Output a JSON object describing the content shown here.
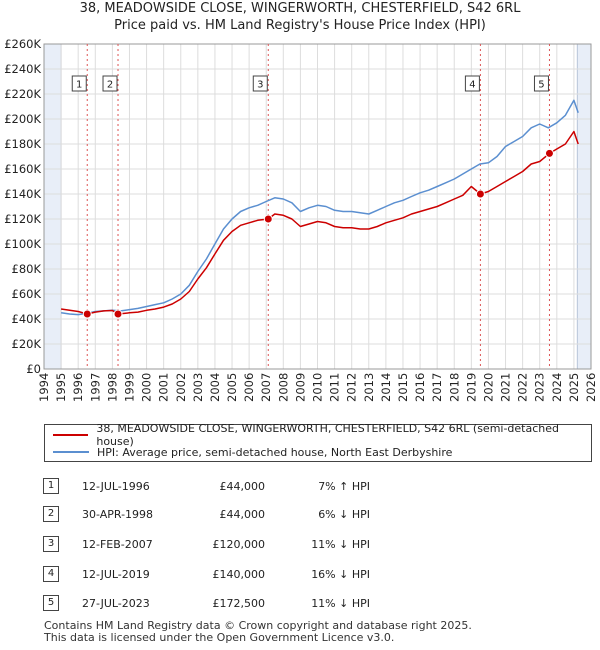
{
  "title_line1": "38, MEADOWSIDE CLOSE, WINGERWORTH, CHESTERFIELD, S42 6RL",
  "title_line2": "Price paid vs. HM Land Registry's House Price Index (HPI)",
  "legend": {
    "red_label": "38, MEADOWSIDE CLOSE, WINGERWORTH, CHESTERFIELD, S42 6RL (semi-detached house)",
    "blue_label": "HPI: Average price, semi-detached house, North East Derbyshire"
  },
  "colors": {
    "red": "#cc0000",
    "blue": "#5b8fd0",
    "shade": "#e8eef8",
    "grid": "#dddddd"
  },
  "transactions": [
    {
      "num": "1",
      "date": "12-JUL-1996",
      "price": "£44,000",
      "hpi": "7% ↑ HPI"
    },
    {
      "num": "2",
      "date": "30-APR-1998",
      "price": "£44,000",
      "hpi": "6% ↓ HPI"
    },
    {
      "num": "3",
      "date": "12-FEB-2007",
      "price": "£120,000",
      "hpi": "11% ↓ HPI"
    },
    {
      "num": "4",
      "date": "12-JUL-2019",
      "price": "£140,000",
      "hpi": "16% ↓ HPI"
    },
    {
      "num": "5",
      "date": "27-JUL-2023",
      "price": "£172,500",
      "hpi": "11% ↓ HPI"
    }
  ],
  "footer": {
    "line1": "Contains HM Land Registry data © Crown copyright and database right 2025.",
    "line2": "This data is licensed under the Open Government Licence v3.0."
  },
  "chart_data": {
    "type": "line",
    "xlim": [
      1994,
      2026
    ],
    "ylim": [
      0,
      260000
    ],
    "x_ticks": [
      "1994",
      "1995",
      "1996",
      "1997",
      "1998",
      "1999",
      "2000",
      "2001",
      "2002",
      "2003",
      "2004",
      "2005",
      "2006",
      "2007",
      "2008",
      "2009",
      "2010",
      "2011",
      "2012",
      "2013",
      "2014",
      "2015",
      "2016",
      "2017",
      "2018",
      "2019",
      "2020",
      "2021",
      "2022",
      "2023",
      "2024",
      "2025",
      "2026"
    ],
    "y_ticks": [
      {
        "v": 0,
        "label": "£0"
      },
      {
        "v": 20000,
        "label": "£20K"
      },
      {
        "v": 40000,
        "label": "£40K"
      },
      {
        "v": 60000,
        "label": "£60K"
      },
      {
        "v": 80000,
        "label": "£80K"
      },
      {
        "v": 100000,
        "label": "£100K"
      },
      {
        "v": 120000,
        "label": "£120K"
      },
      {
        "v": 140000,
        "label": "£140K"
      },
      {
        "v": 160000,
        "label": "£160K"
      },
      {
        "v": 180000,
        "label": "£180K"
      },
      {
        "v": 200000,
        "label": "£200K"
      },
      {
        "v": 220000,
        "label": "£220K"
      },
      {
        "v": 240000,
        "label": "£240K"
      },
      {
        "v": 260000,
        "label": "£260K"
      }
    ],
    "shaded_ranges": [
      [
        1994,
        1995
      ],
      [
        2025.2,
        2026
      ]
    ],
    "series": [
      {
        "name": "HPI: Average price, semi-detached house, North East Derbyshire",
        "color": "#5b8fd0",
        "points": [
          [
            1995,
            45000
          ],
          [
            1995.5,
            44000
          ],
          [
            1996,
            43500
          ],
          [
            1996.5,
            44500
          ],
          [
            1997,
            46000
          ],
          [
            1997.5,
            46500
          ],
          [
            1998,
            47000
          ],
          [
            1998.5,
            46500
          ],
          [
            1999,
            47500
          ],
          [
            1999.5,
            48500
          ],
          [
            2000,
            50000
          ],
          [
            2000.5,
            51500
          ],
          [
            2001,
            53000
          ],
          [
            2001.5,
            56000
          ],
          [
            2002,
            60000
          ],
          [
            2002.5,
            67000
          ],
          [
            2003,
            78000
          ],
          [
            2003.5,
            88000
          ],
          [
            2004,
            100000
          ],
          [
            2004.5,
            112000
          ],
          [
            2005,
            120000
          ],
          [
            2005.5,
            126000
          ],
          [
            2006,
            129000
          ],
          [
            2006.5,
            131000
          ],
          [
            2007,
            134000
          ],
          [
            2007.5,
            137000
          ],
          [
            2008,
            136000
          ],
          [
            2008.5,
            133000
          ],
          [
            2009,
            126000
          ],
          [
            2009.5,
            129000
          ],
          [
            2010,
            131000
          ],
          [
            2010.5,
            130000
          ],
          [
            2011,
            127000
          ],
          [
            2011.5,
            126000
          ],
          [
            2012,
            126000
          ],
          [
            2012.5,
            125000
          ],
          [
            2013,
            124000
          ],
          [
            2013.5,
            127000
          ],
          [
            2014,
            130000
          ],
          [
            2014.5,
            133000
          ],
          [
            2015,
            135000
          ],
          [
            2015.5,
            138000
          ],
          [
            2016,
            141000
          ],
          [
            2016.5,
            143000
          ],
          [
            2017,
            146000
          ],
          [
            2017.5,
            149000
          ],
          [
            2018,
            152000
          ],
          [
            2018.5,
            156000
          ],
          [
            2019,
            160000
          ],
          [
            2019.5,
            164000
          ],
          [
            2020,
            165000
          ],
          [
            2020.5,
            170000
          ],
          [
            2021,
            178000
          ],
          [
            2021.5,
            182000
          ],
          [
            2022,
            186000
          ],
          [
            2022.5,
            193000
          ],
          [
            2023,
            196000
          ],
          [
            2023.5,
            193000
          ],
          [
            2024,
            197000
          ],
          [
            2024.5,
            203000
          ],
          [
            2025,
            215000
          ],
          [
            2025.25,
            205000
          ]
        ]
      },
      {
        "name": "38, MEADOWSIDE CLOSE, WINGERWORTH, CHESTERFIELD, S42 6RL (semi-detached house)",
        "color": "#cc0000",
        "points": [
          [
            1995,
            48000
          ],
          [
            1995.5,
            47000
          ],
          [
            1996,
            46000
          ],
          [
            1996.53,
            44000
          ],
          [
            1997,
            45500
          ],
          [
            1997.5,
            46500
          ],
          [
            1998,
            46800
          ],
          [
            1998.33,
            44000
          ],
          [
            1998.7,
            44500
          ],
          [
            1999,
            45000
          ],
          [
            1999.5,
            45500
          ],
          [
            2000,
            47000
          ],
          [
            2000.5,
            48000
          ],
          [
            2001,
            49500
          ],
          [
            2001.5,
            52000
          ],
          [
            2002,
            56000
          ],
          [
            2002.5,
            62000
          ],
          [
            2003,
            72000
          ],
          [
            2003.5,
            81000
          ],
          [
            2004,
            92000
          ],
          [
            2004.5,
            103000
          ],
          [
            2005,
            110000
          ],
          [
            2005.5,
            115000
          ],
          [
            2006,
            117000
          ],
          [
            2006.5,
            119000
          ],
          [
            2007.12,
            120000
          ],
          [
            2007.5,
            124000
          ],
          [
            2008,
            123000
          ],
          [
            2008.5,
            120000
          ],
          [
            2009,
            114000
          ],
          [
            2009.5,
            116000
          ],
          [
            2010,
            118000
          ],
          [
            2010.5,
            117000
          ],
          [
            2011,
            114000
          ],
          [
            2011.5,
            113000
          ],
          [
            2012,
            113000
          ],
          [
            2012.5,
            112000
          ],
          [
            2013,
            112000
          ],
          [
            2013.5,
            114000
          ],
          [
            2014,
            117000
          ],
          [
            2014.5,
            119000
          ],
          [
            2015,
            121000
          ],
          [
            2015.5,
            124000
          ],
          [
            2016,
            126000
          ],
          [
            2016.5,
            128000
          ],
          [
            2017,
            130000
          ],
          [
            2017.5,
            133000
          ],
          [
            2018,
            136000
          ],
          [
            2018.5,
            139000
          ],
          [
            2019,
            146000
          ],
          [
            2019.53,
            140000
          ],
          [
            2020,
            142000
          ],
          [
            2020.5,
            146000
          ],
          [
            2021,
            150000
          ],
          [
            2021.5,
            154000
          ],
          [
            2022,
            158000
          ],
          [
            2022.5,
            164000
          ],
          [
            2023,
            166000
          ],
          [
            2023.57,
            172500
          ],
          [
            2024,
            176000
          ],
          [
            2024.5,
            180000
          ],
          [
            2025,
            190000
          ],
          [
            2025.25,
            180000
          ]
        ]
      }
    ],
    "markers": [
      {
        "label": "1",
        "x": 1996.53,
        "y": 44000
      },
      {
        "label": "2",
        "x": 1998.33,
        "y": 44000
      },
      {
        "label": "3",
        "x": 2007.12,
        "y": 120000
      },
      {
        "label": "4",
        "x": 2019.53,
        "y": 140000
      },
      {
        "label": "5",
        "x": 2023.57,
        "y": 172500
      }
    ]
  }
}
